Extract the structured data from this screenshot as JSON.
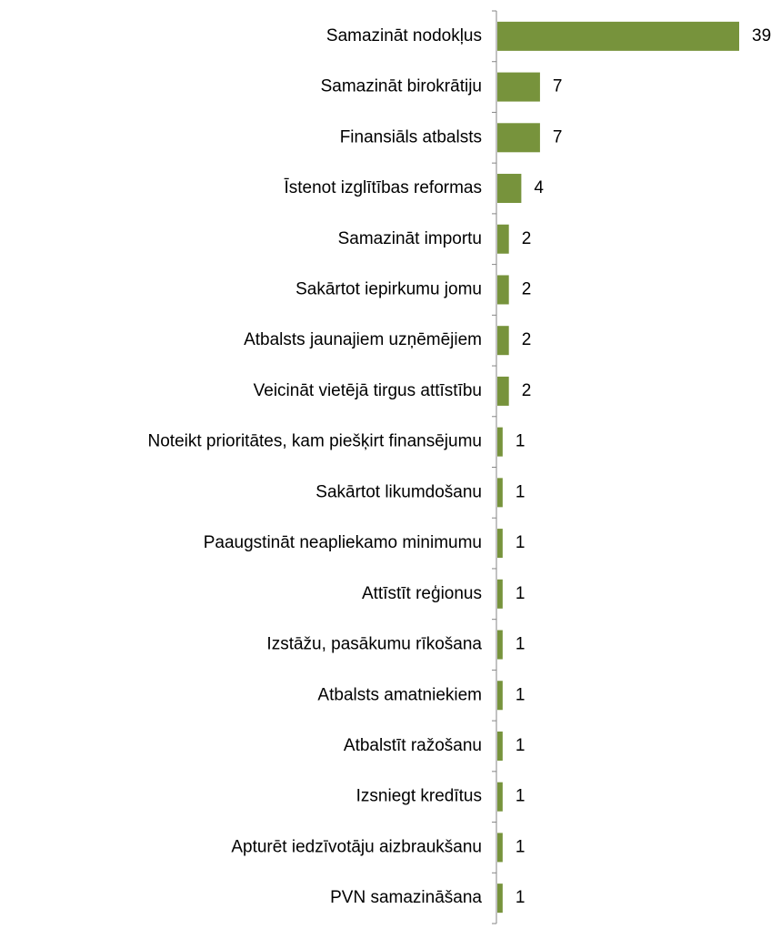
{
  "chart_data": {
    "type": "barh",
    "categories": [
      "Samazināt nodokļus",
      "Samazināt birokrātiju",
      "Finansiāls atbalsts",
      "Īstenot izglītības reformas",
      "Samazināt importu",
      "Sakārtot iepirkumu jomu",
      "Atbalsts jaunajiem uzņēmējiem",
      "Veicināt vietējā tirgus attīstību",
      "Noteikt prioritātes, kam piešķirt finansējumu",
      "Sakārtot likumdošanu",
      "Paaugstināt neapliekamo minimumu",
      "Attīstīt reģionus",
      "Izstāžu, pasākumu rīkošana",
      "Atbalsts amatniekiem",
      "Atbalstīt ražošanu",
      "Izsniegt kredītus",
      "Apturēt iedzīvotāju aizbraukšanu",
      "PVN samazināšana"
    ],
    "values": [
      39,
      7,
      7,
      4,
      2,
      2,
      2,
      2,
      1,
      1,
      1,
      1,
      1,
      1,
      1,
      1,
      1,
      1
    ],
    "color": "#77933c"
  }
}
